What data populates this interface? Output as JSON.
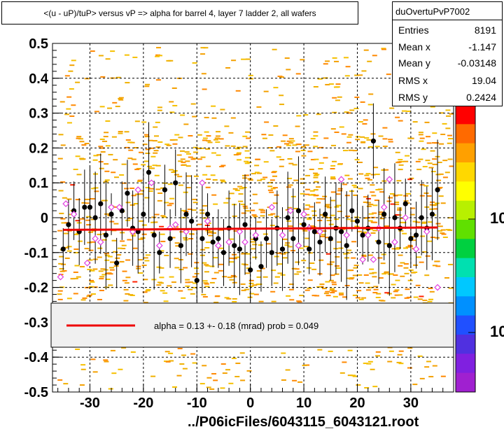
{
  "title": "<(u - uP)/tuP> versus   vP => alpha for barrel 4, layer 7 ladder 2, all wafers",
  "stats": {
    "name": "duOvertuPvP7002",
    "rows": [
      {
        "label": "Entries",
        "value": "8191"
      },
      {
        "label": "Mean x",
        "value": "-1.147"
      },
      {
        "label": "Mean y",
        "value": "-0.03148"
      },
      {
        "label": "RMS x",
        "value": "19.04"
      },
      {
        "label": "RMS y",
        "value": "0.2424"
      }
    ]
  },
  "fit_legend": "alpha =    0.13 +-  0.18 (mrad) prob = 0.049",
  "footer": "../P06icFiles/6043115_6043121.root",
  "palette_labels": [
    "10",
    "10"
  ],
  "colors": {
    "fit_line": "#ee0000",
    "scatter": "#f4a000",
    "profile": "#000000",
    "open_marker": "#e040e0"
  },
  "chart_data": {
    "type": "scatter",
    "title": "<(u - uP)/tuP> versus   vP => alpha for barrel 4, layer 7 ladder 2, all wafers",
    "xlim": [
      -37,
      38
    ],
    "ylim": [
      -0.5,
      0.5
    ],
    "x_ticks": [
      -30,
      -20,
      -10,
      0,
      10,
      20,
      30
    ],
    "y_ticks": [
      -0.5,
      -0.4,
      -0.3,
      -0.2,
      -0.1,
      0,
      0.1,
      0.2,
      0.3,
      0.4,
      0.5
    ],
    "x_tick_labels": [
      "-30",
      "-20",
      "-10",
      "0",
      "10",
      "20",
      "30"
    ],
    "y_tick_labels": [
      "-0.5",
      "-0.4",
      "-0.3",
      "-0.2",
      "-0.1",
      "0",
      "0.1",
      "0.2",
      "0.3",
      "0.4",
      "0.5"
    ],
    "grid": true,
    "fit_line": {
      "x": [
        -35,
        35
      ],
      "y": [
        -0.035,
        -0.028
      ]
    },
    "profile_points": [
      {
        "x": -35,
        "y": -0.09
      },
      {
        "x": -34,
        "y": -0.02
      },
      {
        "x": -33,
        "y": 0.02
      },
      {
        "x": -32,
        "y": -0.04
      },
      {
        "x": -31,
        "y": 0.03
      },
      {
        "x": -30,
        "y": 0.03
      },
      {
        "x": -29,
        "y": 0.0
      },
      {
        "x": -28,
        "y": 0.04
      },
      {
        "x": -27,
        "y": -0.05
      },
      {
        "x": -26,
        "y": 0.01
      },
      {
        "x": -25,
        "y": -0.13
      },
      {
        "x": -24,
        "y": 0.02
      },
      {
        "x": -23,
        "y": 0.07
      },
      {
        "x": -22,
        "y": -0.03
      },
      {
        "x": -21,
        "y": -0.04
      },
      {
        "x": -20,
        "y": 0.01
      },
      {
        "x": -19,
        "y": 0.13
      },
      {
        "x": -18,
        "y": -0.05
      },
      {
        "x": -17,
        "y": -0.1
      },
      {
        "x": -16,
        "y": 0.08
      },
      {
        "x": -15,
        "y": -0.06
      },
      {
        "x": -14,
        "y": 0.1
      },
      {
        "x": -13,
        "y": -0.08
      },
      {
        "x": -12,
        "y": 0.01
      },
      {
        "x": -11,
        "y": -0.01
      },
      {
        "x": -10,
        "y": -0.18
      },
      {
        "x": -9,
        "y": -0.06
      },
      {
        "x": -8,
        "y": 0.01
      },
      {
        "x": -7,
        "y": -0.07
      },
      {
        "x": -6,
        "y": -0.06
      },
      {
        "x": -5,
        "y": -0.1
      },
      {
        "x": -4,
        "y": -0.03
      },
      {
        "x": -3,
        "y": -0.08
      },
      {
        "x": -2,
        "y": -0.09
      },
      {
        "x": -1,
        "y": -0.02
      },
      {
        "x": 0,
        "y": -0.15
      },
      {
        "x": 1,
        "y": -0.06
      },
      {
        "x": 2,
        "y": -0.14
      },
      {
        "x": 3,
        "y": -0.06
      },
      {
        "x": 4,
        "y": -0.1
      },
      {
        "x": 5,
        "y": -0.03
      },
      {
        "x": 6,
        "y": -0.09
      },
      {
        "x": 7,
        "y": 0.0
      },
      {
        "x": 8,
        "y": -0.06
      },
      {
        "x": 9,
        "y": 0.02
      },
      {
        "x": 10,
        "y": -0.02
      },
      {
        "x": 11,
        "y": -0.09
      },
      {
        "x": 12,
        "y": -0.04
      },
      {
        "x": 13,
        "y": -0.07
      },
      {
        "x": 14,
        "y": 0.01
      },
      {
        "x": 15,
        "y": -0.06
      },
      {
        "x": 16,
        "y": -0.03
      },
      {
        "x": 17,
        "y": -0.04
      },
      {
        "x": 18,
        "y": -0.08
      },
      {
        "x": 19,
        "y": 0.02
      },
      {
        "x": 20,
        "y": -0.01
      },
      {
        "x": 21,
        "y": -0.05
      },
      {
        "x": 22,
        "y": -0.03
      },
      {
        "x": 23,
        "y": 0.22
      },
      {
        "x": 24,
        "y": -0.07
      },
      {
        "x": 25,
        "y": 0.01
      },
      {
        "x": 26,
        "y": -0.08
      },
      {
        "x": 27,
        "y": 0.0
      },
      {
        "x": 28,
        "y": -0.03
      },
      {
        "x": 29,
        "y": 0.04
      },
      {
        "x": 30,
        "y": -0.06
      },
      {
        "x": 31,
        "y": -0.05
      },
      {
        "x": 32,
        "y": 0.0
      },
      {
        "x": 33,
        "y": -0.03
      },
      {
        "x": 34,
        "y": 0.01
      },
      {
        "x": 35,
        "y": 0.08
      }
    ],
    "open_points": [
      {
        "x": -35.5,
        "y": -0.17
      },
      {
        "x": -34.5,
        "y": 0.04
      },
      {
        "x": -33,
        "y": 0.01
      },
      {
        "x": -30.5,
        "y": -0.13
      },
      {
        "x": -29,
        "y": -0.06
      },
      {
        "x": -28,
        "y": -0.07
      },
      {
        "x": -26,
        "y": 0.03
      },
      {
        "x": -24.5,
        "y": 0.03
      },
      {
        "x": -22,
        "y": -0.04
      },
      {
        "x": -21,
        "y": 0.08
      },
      {
        "x": -18.5,
        "y": 0.1
      },
      {
        "x": -17,
        "y": -0.08
      },
      {
        "x": -15,
        "y": -0.03
      },
      {
        "x": -14,
        "y": -0.02
      },
      {
        "x": -12,
        "y": -0.04
      },
      {
        "x": -9,
        "y": 0.1
      },
      {
        "x": -8,
        "y": -0.01
      },
      {
        "x": -6,
        "y": -0.08
      },
      {
        "x": -4,
        "y": -0.07
      },
      {
        "x": -2,
        "y": -0.04
      },
      {
        "x": -1,
        "y": -0.07
      },
      {
        "x": 1,
        "y": -0.05
      },
      {
        "x": 4,
        "y": 0.03
      },
      {
        "x": 6,
        "y": -0.05
      },
      {
        "x": 7.5,
        "y": 0.02
      },
      {
        "x": 9,
        "y": -0.08
      },
      {
        "x": 10,
        "y": 0.01
      },
      {
        "x": 11,
        "y": -0.03
      },
      {
        "x": 13,
        "y": -0.04
      },
      {
        "x": 17,
        "y": 0.11
      },
      {
        "x": 18,
        "y": -0.05
      },
      {
        "x": 21,
        "y": -0.12
      },
      {
        "x": 22,
        "y": -0.05
      },
      {
        "x": 23,
        "y": -0.12
      },
      {
        "x": 24,
        "y": -0.03
      },
      {
        "x": 25,
        "y": 0.03
      },
      {
        "x": 26,
        "y": 0.11
      },
      {
        "x": 27,
        "y": -0.07
      },
      {
        "x": 29,
        "y": 0.0
      },
      {
        "x": 31,
        "y": -0.09
      },
      {
        "x": 33,
        "y": -0.04
      },
      {
        "x": 35,
        "y": -0.2
      }
    ],
    "palette_colors": [
      "#ff0000",
      "#ff6a00",
      "#ffa000",
      "#ffd800",
      "#ffff00",
      "#b8f000",
      "#60e000",
      "#00d040",
      "#00e0b0",
      "#00c8ff",
      "#0090ff",
      "#2050ff",
      "#5030e0",
      "#8020e0",
      "#a020d0"
    ]
  }
}
